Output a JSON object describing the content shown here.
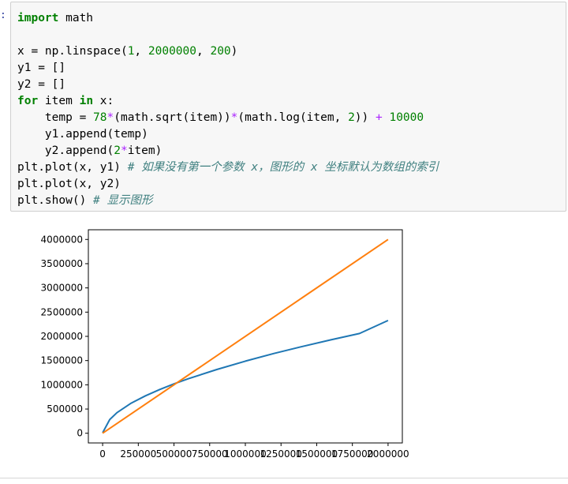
{
  "cell": {
    "prompt_colon": ":",
    "lines": [
      [
        {
          "t": "import",
          "c": "kw"
        },
        {
          "t": " math",
          "c": ""
        }
      ],
      [
        {
          "t": "",
          "c": ""
        }
      ],
      [
        {
          "t": "x = np.linspace(",
          "c": ""
        },
        {
          "t": "1",
          "c": "num"
        },
        {
          "t": ", ",
          "c": ""
        },
        {
          "t": "2000000",
          "c": "num"
        },
        {
          "t": ", ",
          "c": ""
        },
        {
          "t": "200",
          "c": "num"
        },
        {
          "t": ")",
          "c": ""
        }
      ],
      [
        {
          "t": "y1 = []",
          "c": ""
        }
      ],
      [
        {
          "t": "y2 = []",
          "c": ""
        }
      ],
      [
        {
          "t": "for",
          "c": "kw"
        },
        {
          "t": " item ",
          "c": ""
        },
        {
          "t": "in",
          "c": "kw"
        },
        {
          "t": " x:",
          "c": ""
        }
      ],
      [
        {
          "t": "    temp = ",
          "c": ""
        },
        {
          "t": "78",
          "c": "num"
        },
        {
          "t": "*",
          "c": "op"
        },
        {
          "t": "(math.sqrt(item))",
          "c": ""
        },
        {
          "t": "*",
          "c": "op"
        },
        {
          "t": "(math.log(item, ",
          "c": ""
        },
        {
          "t": "2",
          "c": "num"
        },
        {
          "t": ")) ",
          "c": ""
        },
        {
          "t": "+",
          "c": "op"
        },
        {
          "t": " ",
          "c": ""
        },
        {
          "t": "10000",
          "c": "num"
        }
      ],
      [
        {
          "t": "    y1.append(temp)",
          "c": ""
        }
      ],
      [
        {
          "t": "    y2.append(",
          "c": ""
        },
        {
          "t": "2",
          "c": "num"
        },
        {
          "t": "*",
          "c": "op"
        },
        {
          "t": "item)",
          "c": ""
        }
      ],
      [
        {
          "t": "plt.plot(x, y1) ",
          "c": ""
        },
        {
          "t": "# 如果没有第一个参数 x，图形的 x 坐标默认为数组的索引",
          "c": "cm"
        }
      ],
      [
        {
          "t": "plt.plot(x, y2)",
          "c": ""
        }
      ],
      [
        {
          "t": "plt.show() ",
          "c": ""
        },
        {
          "t": "# 显示图形",
          "c": "cm"
        }
      ]
    ]
  },
  "chart_data": {
    "type": "line",
    "title": "",
    "xlabel": "",
    "ylabel": "",
    "xlim": [
      -100000,
      2100000
    ],
    "ylim": [
      -200000,
      4200000
    ],
    "x_ticks": [
      0,
      250000,
      500000,
      750000,
      1000000,
      1250000,
      1500000,
      1750000,
      2000000
    ],
    "x_tick_labels": [
      "0",
      "250000",
      "500000",
      "750000",
      "1000000",
      "1250000",
      "1500000",
      "1750000",
      "2000000"
    ],
    "y_ticks": [
      0,
      500000,
      1000000,
      1500000,
      2000000,
      2500000,
      3000000,
      3500000,
      4000000
    ],
    "y_tick_labels": [
      "0",
      "500000",
      "1000000",
      "1500000",
      "2000000",
      "2500000",
      "3000000",
      "3500000",
      "4000000"
    ],
    "grid": false,
    "series": [
      {
        "color": "#1f77b4",
        "x": [
          1,
          50000,
          100000,
          200000,
          300000,
          400000,
          500000,
          600000,
          800000,
          1000000,
          1200000,
          1400000,
          1600000,
          1800000,
          2000000
        ],
        "values": [
          10000,
          282000,
          424000,
          622000,
          773000,
          903000,
          1019000,
          1125000,
          1316000,
          1488000,
          1646000,
          1792000,
          1929000,
          2058000,
          2328000
        ]
      },
      {
        "color": "#ff7f0e",
        "x": [
          1,
          2000000
        ],
        "values": [
          2,
          4000000
        ]
      }
    ]
  }
}
